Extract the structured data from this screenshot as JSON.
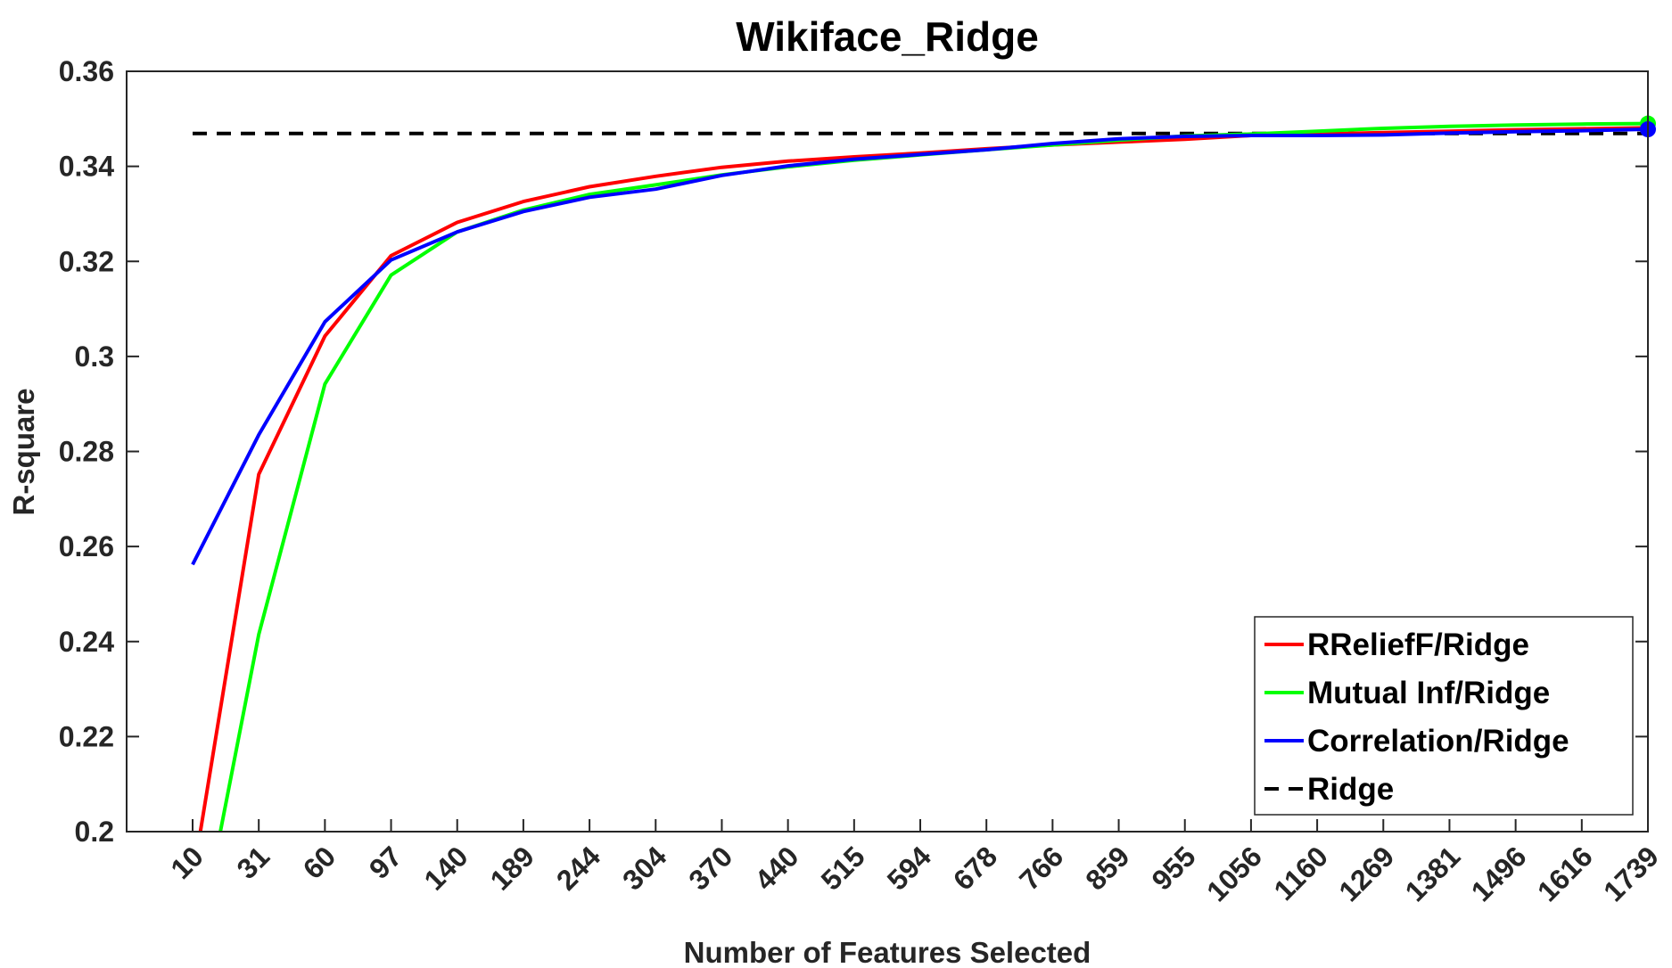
{
  "chart_data": {
    "type": "line",
    "title": "Wikiface_Ridge",
    "xlabel": "Number of Features Selected",
    "ylabel": "R-square",
    "categories": [
      "10",
      "31",
      "60",
      "97",
      "140",
      "189",
      "244",
      "304",
      "370",
      "440",
      "515",
      "594",
      "678",
      "766",
      "859",
      "955",
      "1056",
      "1160",
      "1269",
      "1381",
      "1496",
      "1616",
      "1739"
    ],
    "yticks": [
      "0.2",
      "0.22",
      "0.24",
      "0.26",
      "0.28",
      "0.3",
      "0.32",
      "0.34",
      "0.36"
    ],
    "ylim": [
      0.2,
      0.36
    ],
    "grid": false,
    "legend_position": "bottom-right",
    "series": [
      {
        "name": "RReliefF/Ridge",
        "color": "#ff0000",
        "style": "solid",
        "values": [
          0.19,
          0.2752,
          0.3043,
          0.3212,
          0.3282,
          0.3326,
          0.3357,
          0.3379,
          0.3398,
          0.3411,
          0.342,
          0.3428,
          0.3437,
          0.3445,
          0.3451,
          0.3457,
          0.3465,
          0.3468,
          0.3471,
          0.3474,
          0.3477,
          0.3479,
          0.3481
        ],
        "end_marker": false
      },
      {
        "name": "Mutual Inf/Ridge",
        "color": "#00ff00",
        "style": "solid",
        "values": [
          0.17,
          0.2415,
          0.2942,
          0.3171,
          0.3262,
          0.3308,
          0.3341,
          0.3361,
          0.3382,
          0.3399,
          0.3413,
          0.3424,
          0.3435,
          0.3445,
          0.3455,
          0.3464,
          0.3468,
          0.3474,
          0.348,
          0.3484,
          0.3487,
          0.3489,
          0.349
        ],
        "end_marker": true
      },
      {
        "name": "Correlation/Ridge",
        "color": "#0000ff",
        "style": "solid",
        "values": [
          0.2562,
          0.2835,
          0.3073,
          0.3203,
          0.3262,
          0.3305,
          0.3335,
          0.3352,
          0.3381,
          0.3401,
          0.3415,
          0.3425,
          0.3435,
          0.3448,
          0.3458,
          0.3463,
          0.3465,
          0.3465,
          0.3466,
          0.347,
          0.3473,
          0.3475,
          0.3478
        ],
        "end_marker": true
      },
      {
        "name": "Ridge",
        "color": "#000000",
        "style": "dashed",
        "values": [
          0.3469,
          0.3469,
          0.3469,
          0.3469,
          0.3469,
          0.3469,
          0.3469,
          0.3469,
          0.3469,
          0.3469,
          0.3469,
          0.3469,
          0.3469,
          0.3469,
          0.3469,
          0.3469,
          0.3469,
          0.3469,
          0.3469,
          0.3469,
          0.3469,
          0.3469,
          0.3469
        ],
        "end_marker": false
      }
    ]
  }
}
